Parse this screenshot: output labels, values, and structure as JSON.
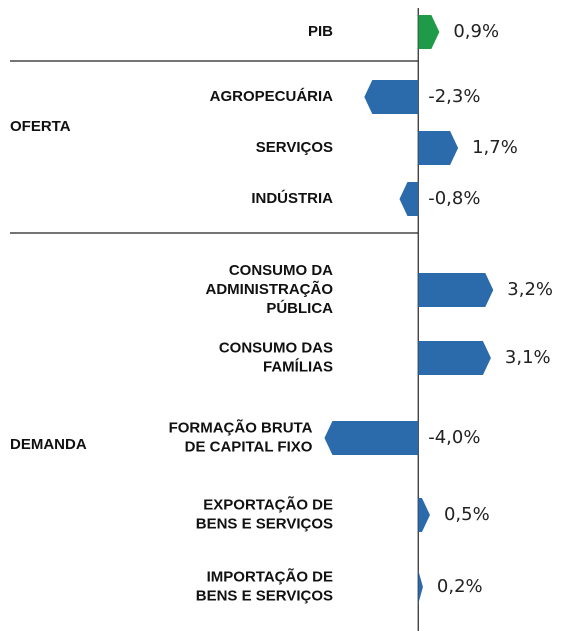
{
  "chart_data": {
    "type": "bar",
    "orientation": "horizontal",
    "categories": [
      [
        "PIB"
      ],
      [
        "AGROPECUÁRIA"
      ],
      [
        "SERVIÇOS"
      ],
      [
        "INDÚSTRIA"
      ],
      [
        "CONSUMO DA",
        "ADMINISTRAÇÃO",
        "PÚBLICA"
      ],
      [
        "CONSUMO DAS",
        "FAMÍLIAS"
      ],
      [
        "FORMAÇÃO BRUTA",
        "DE CAPITAL FIXO"
      ],
      [
        "EXPORTAÇÃO DE",
        "BENS E SERVIÇOS"
      ],
      [
        "IMPORTAÇÃO DE",
        "BENS E SERVIÇOS"
      ]
    ],
    "values": [
      0.9,
      -2.3,
      1.7,
      -0.8,
      3.2,
      3.1,
      -4.0,
      0.5,
      0.2
    ],
    "value_labels": [
      "0,9%",
      "-2,3%",
      "1,7%",
      "-0,8%",
      "3,2%",
      "3,1%",
      "-4,0%",
      "0,5%",
      "0,2%"
    ],
    "colors": [
      "#1e9a48",
      "#2b6aab",
      "#2b6aab",
      "#2b6aab",
      "#2b6aab",
      "#2b6aab",
      "#2b6aab",
      "#2b6aab",
      "#2b6aab"
    ],
    "groups": [
      "OFERTA",
      "DEMANDA"
    ],
    "xlim": [
      -5,
      6.6
    ]
  }
}
